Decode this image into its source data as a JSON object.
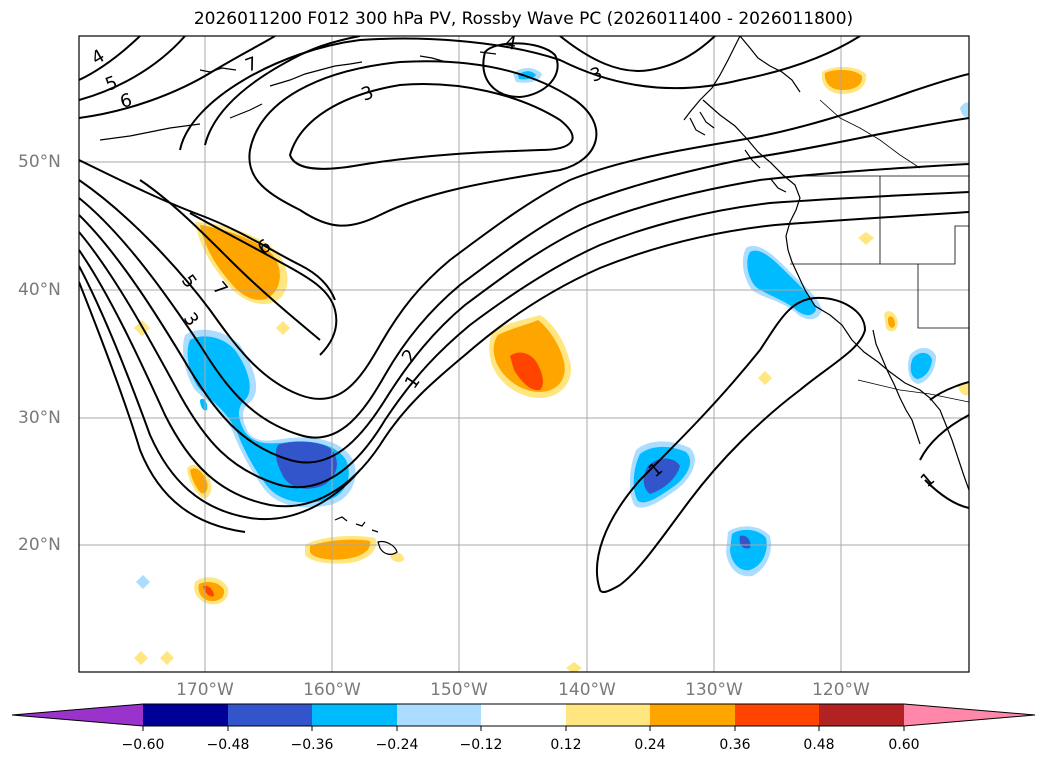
{
  "title": "2026011200 F012 300 hPa PV, Rossby Wave PC (2026011400 - 2026011800)",
  "lat_labels": [
    "50°N",
    "40°N",
    "30°N",
    "20°N"
  ],
  "lon_labels": [
    "170°W",
    "160°W",
    "150°W",
    "140°W",
    "130°W",
    "120°W"
  ],
  "contour_labels": [
    "4",
    "5",
    "6",
    "7",
    "3",
    "4",
    "3",
    "6",
    "5",
    "7",
    "3",
    "2",
    "1",
    "1",
    "1"
  ],
  "colorbar": {
    "ticks": [
      "−0.60",
      "−0.48",
      "−0.36",
      "−0.24",
      "−0.12",
      "0.12",
      "0.24",
      "0.36",
      "0.48",
      "0.60"
    ],
    "colors": {
      "lt_neg060": "#9933cc",
      "neg060_048": "#000099",
      "neg048_036": "#3355cc",
      "neg036_024": "#00bbff",
      "neg024_012": "#aaddff",
      "neg012_012": "#ffffff",
      "pos012_024": "#ffe680",
      "pos024_036": "#ffa500",
      "pos036_048": "#ff4400",
      "pos048_060": "#b22222",
      "gt_060": "#ff88aa"
    }
  }
}
